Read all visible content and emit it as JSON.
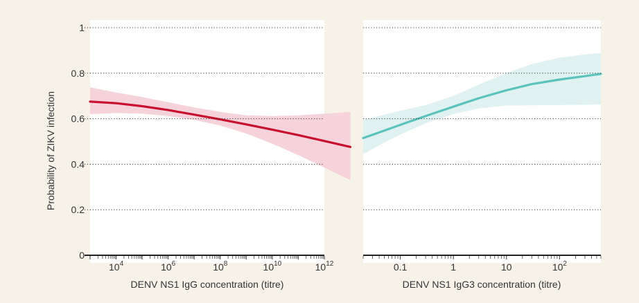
{
  "colors": {
    "background": "#f7f2e8",
    "panel": "#ffffff",
    "gridline": "#333333",
    "left_curve": "#c8102e",
    "left_band": "#f6d3da",
    "right_curve": "#5bc2be",
    "right_band": "#dff2f1"
  },
  "chart_data": [
    {
      "type": "line",
      "ylabel": "Probability of ZIKV infection",
      "xlabel": "DENV NS1 IgG concentration (titre)",
      "x_scale": "log10",
      "xlim": [
        1000,
        1000000000000
      ],
      "ylim": [
        0,
        1
      ],
      "grid": "horizontal dotted",
      "y_ticks": [
        "0",
        "0.2",
        "0.4",
        "0.6",
        "0.8",
        "1"
      ],
      "x_ticks": [
        {
          "x": 10000,
          "base": "10",
          "exp": "4"
        },
        {
          "x": 1000000,
          "base": "10",
          "exp": "6"
        },
        {
          "x": 100000000,
          "base": "10",
          "exp": "8"
        },
        {
          "x": 10000000000,
          "base": "10",
          "exp": "10"
        },
        {
          "x": 1000000000000,
          "base": "10",
          "exp": "12"
        }
      ],
      "series": [
        {
          "x": [
            1000,
            10000,
            100000,
            1000000,
            10000000,
            100000000,
            1000000000,
            10000000000,
            100000000000,
            1000000000000,
            10000000000000
          ],
          "y": [
            0.675,
            0.668,
            0.655,
            0.638,
            0.618,
            0.597,
            0.575,
            0.552,
            0.528,
            0.502,
            0.476
          ],
          "lower": [
            0.62,
            0.625,
            0.622,
            0.612,
            0.595,
            0.57,
            0.535,
            0.49,
            0.44,
            0.385,
            0.33
          ],
          "upper": [
            0.738,
            0.715,
            0.695,
            0.672,
            0.65,
            0.63,
            0.615,
            0.612,
            0.615,
            0.622,
            0.63
          ]
        }
      ]
    },
    {
      "type": "line",
      "xlabel": "DENV NS1 IgG3 concentration (titre)",
      "x_scale": "log10",
      "xlim": [
        0.02,
        600
      ],
      "ylim": [
        0,
        1
      ],
      "grid": "horizontal dotted",
      "x_ticks": [
        {
          "x": 0.1,
          "base": "0.1",
          "exp": ""
        },
        {
          "x": 1,
          "base": "1",
          "exp": ""
        },
        {
          "x": 10,
          "base": "10",
          "exp": ""
        },
        {
          "x": 100,
          "base": "10",
          "exp": "2"
        }
      ],
      "series": [
        {
          "x": [
            0.02,
            0.05,
            0.1,
            0.3,
            1,
            3,
            10,
            30,
            100,
            300,
            600
          ],
          "y": [
            0.515,
            0.548,
            0.573,
            0.612,
            0.653,
            0.69,
            0.725,
            0.752,
            0.772,
            0.787,
            0.797
          ],
          "lower": [
            0.445,
            0.495,
            0.53,
            0.58,
            0.62,
            0.645,
            0.658,
            0.659,
            0.66,
            0.661,
            0.662
          ],
          "upper": [
            0.595,
            0.618,
            0.635,
            0.66,
            0.7,
            0.75,
            0.8,
            0.84,
            0.868,
            0.882,
            0.888
          ]
        }
      ]
    }
  ]
}
